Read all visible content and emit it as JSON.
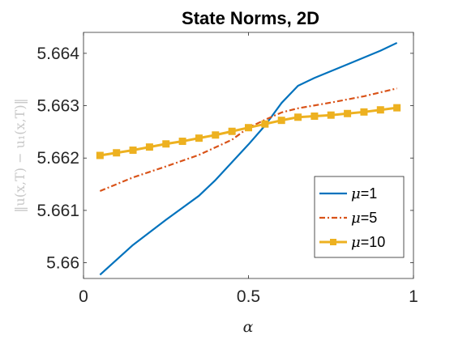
{
  "chart_data": {
    "type": "line",
    "title": "State Norms, 2D",
    "xlabel": "α",
    "ylabel": "‖u(x,T) − u₁(x,T)‖",
    "xlim": [
      0,
      1
    ],
    "ylim": [
      5.6597,
      5.6644
    ],
    "xticks": [
      0,
      0.5,
      1
    ],
    "xtick_labels": [
      "0",
      "0.5",
      "1"
    ],
    "yticks": [
      5.66,
      5.661,
      5.662,
      5.663,
      5.664
    ],
    "ytick_labels": [
      "5.66",
      "5.661",
      "5.662",
      "5.663",
      "5.664"
    ],
    "grid": false,
    "legend_position": "bottom-right",
    "series": [
      {
        "name": "μ=1",
        "legend_var": "μ",
        "legend_value": "=1",
        "color": "#0072BD",
        "style": "solid",
        "marker": "none",
        "x": [
          0.05,
          0.15,
          0.25,
          0.35,
          0.4,
          0.45,
          0.5,
          0.55,
          0.6,
          0.65,
          0.7,
          0.8,
          0.9,
          0.95
        ],
        "y": [
          5.65977,
          5.66034,
          5.66082,
          5.66128,
          5.66158,
          5.66192,
          5.66226,
          5.66262,
          5.66305,
          5.66338,
          5.66353,
          5.66379,
          5.66405,
          5.6642
        ]
      },
      {
        "name": "μ=5",
        "legend_var": "μ",
        "legend_value": "=5",
        "color": "#D95319",
        "style": "dashdot",
        "marker": "none",
        "x": [
          0.05,
          0.15,
          0.25,
          0.35,
          0.45,
          0.5,
          0.55,
          0.6,
          0.65,
          0.75,
          0.85,
          0.95
        ],
        "y": [
          5.66137,
          5.66163,
          5.66184,
          5.66206,
          5.66235,
          5.66258,
          5.66273,
          5.66287,
          5.66295,
          5.66306,
          5.66318,
          5.66333
        ]
      },
      {
        "name": "μ=10",
        "legend_var": "μ",
        "legend_value": "=10",
        "color": "#EDB120",
        "style": "solid",
        "marker": "square",
        "x": [
          0.05,
          0.1,
          0.15,
          0.2,
          0.25,
          0.3,
          0.35,
          0.4,
          0.45,
          0.5,
          0.55,
          0.6,
          0.65,
          0.7,
          0.75,
          0.8,
          0.85,
          0.9,
          0.95
        ],
        "y": [
          5.66205,
          5.6621,
          5.66215,
          5.66221,
          5.66227,
          5.66232,
          5.66238,
          5.66244,
          5.66251,
          5.66258,
          5.66265,
          5.66272,
          5.66278,
          5.6628,
          5.66282,
          5.66285,
          5.66288,
          5.66292,
          5.66296
        ]
      }
    ]
  }
}
